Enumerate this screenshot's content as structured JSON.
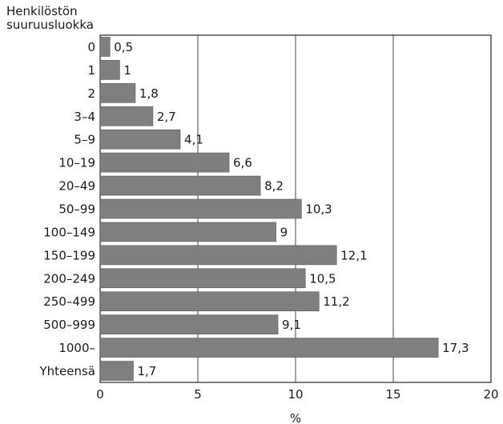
{
  "chart_data": {
    "type": "bar",
    "orientation": "horizontal",
    "ylabel": [
      "Henkilöstön",
      "suuruusluokka"
    ],
    "xlabel": "%",
    "xlim": [
      0,
      20
    ],
    "xticks": [
      "0",
      "5",
      "10",
      "15",
      "20"
    ],
    "grid": "vertical",
    "bar_color": "#7f7f7f",
    "categories": [
      "0",
      "1",
      "2",
      "3–4",
      "5–9",
      "10–19",
      "20–49",
      "50–99",
      "100–149",
      "150–199",
      "200–249",
      "250–499",
      "500–999",
      "1000–",
      "Yhteensä"
    ],
    "values": [
      0.5,
      1,
      1.8,
      2.7,
      4.1,
      6.6,
      8.2,
      10.3,
      9,
      12.1,
      10.5,
      11.2,
      9.1,
      17.3,
      1.7
    ],
    "value_labels": [
      "0,5",
      "1",
      "1,8",
      "2,7",
      "4,1",
      "6,6",
      "8,2",
      "10,3",
      "9",
      "12,1",
      "10,5",
      "11,2",
      "9,1",
      "17,3",
      "1,7"
    ]
  }
}
